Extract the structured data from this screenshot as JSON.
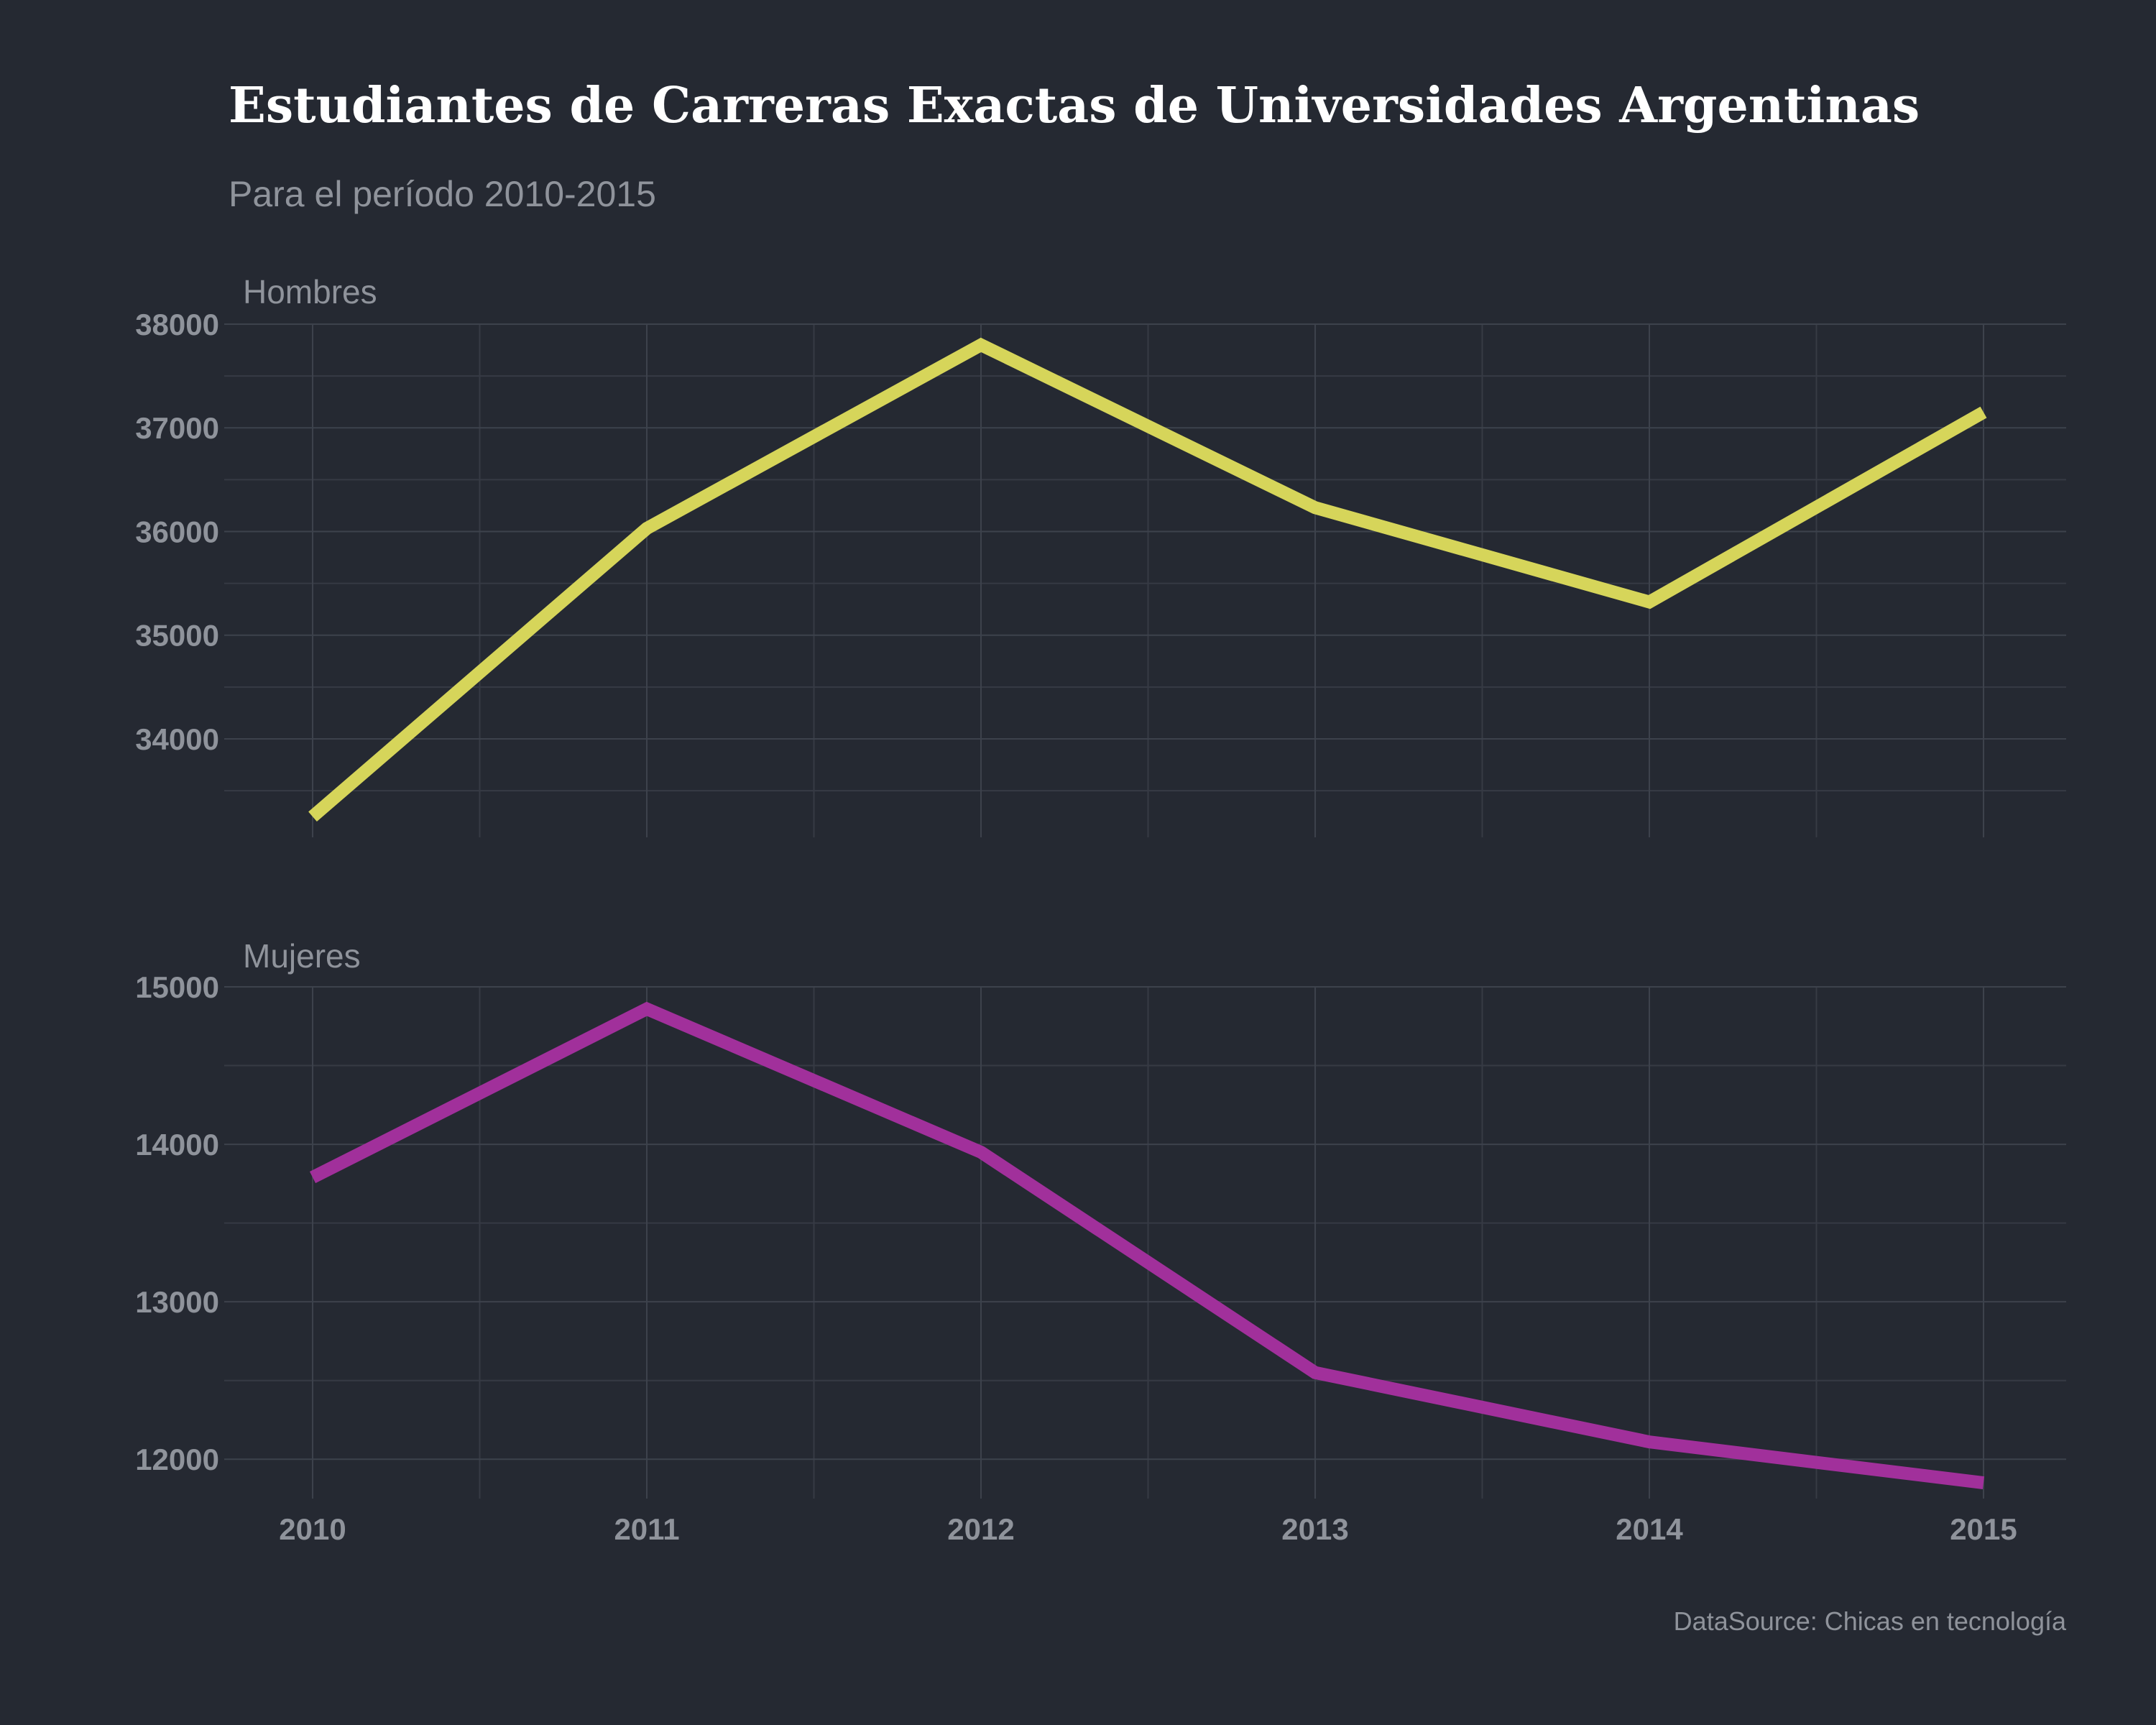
{
  "title": "Estudiantes de Carreras Exactas de Universidades Argentinas",
  "subtitle": "Para el período 2010-2015",
  "caption": "DataSource: Chicas en tecnología",
  "colors": {
    "background": "#252932",
    "hombres": "#d6d55a",
    "mujeres": "#a1309b",
    "grid": "#3d424c",
    "text": "#8f939b"
  },
  "chart_data": [
    {
      "type": "line",
      "facet": "Hombres",
      "x": [
        2010,
        2011,
        2012,
        2013,
        2014,
        2015
      ],
      "values": [
        33250,
        36030,
        37800,
        36230,
        35320,
        37150
      ],
      "ylim": [
        33050,
        38000
      ],
      "yticks": [
        34000,
        35000,
        36000,
        37000,
        38000
      ],
      "grid": true,
      "color": "#d6d55a"
    },
    {
      "type": "line",
      "facet": "Mujeres",
      "x": [
        2010,
        2011,
        2012,
        2013,
        2014,
        2015
      ],
      "values": [
        13790,
        14860,
        13950,
        12550,
        12110,
        11850
      ],
      "ylim": [
        11750,
        15000
      ],
      "yticks": [
        12000,
        13000,
        14000,
        15000
      ],
      "grid": true,
      "color": "#a1309b"
    }
  ],
  "xticks": [
    2010,
    2011,
    2012,
    2013,
    2014,
    2015
  ]
}
